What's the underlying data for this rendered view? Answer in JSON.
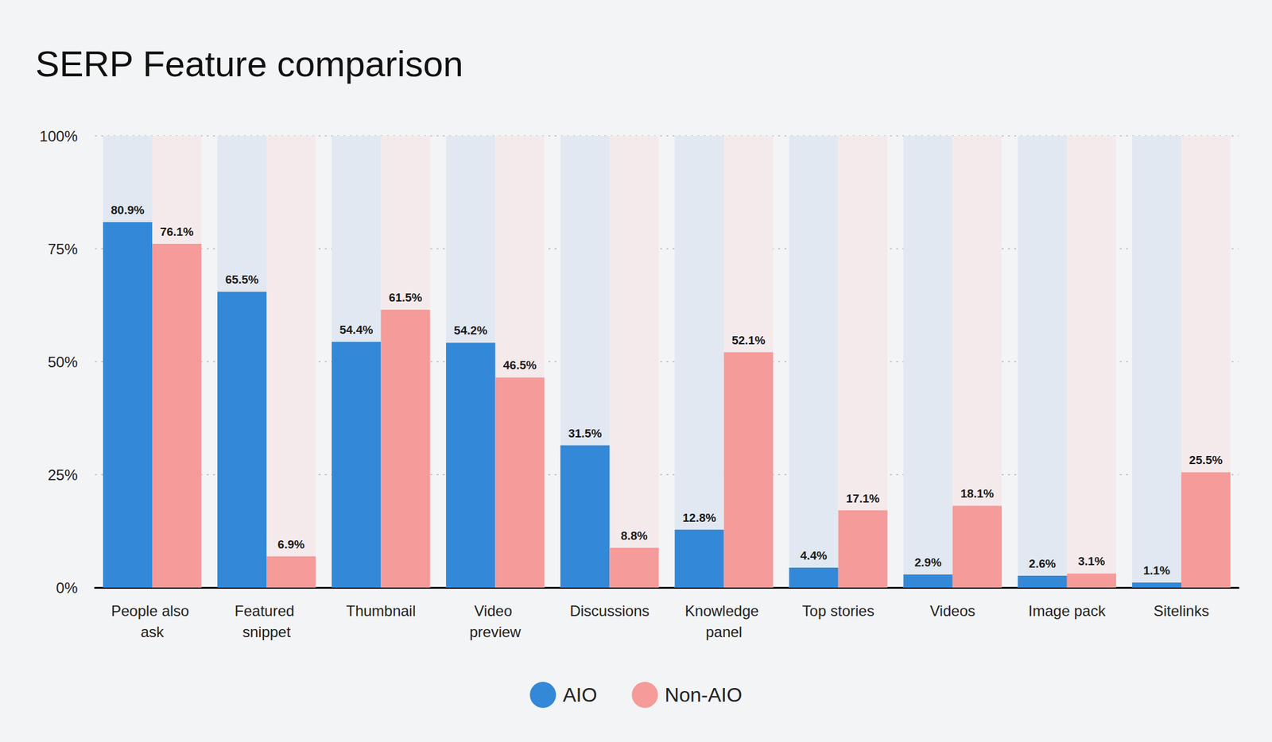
{
  "chart_data": {
    "type": "bar",
    "title": "SERP Feature comparison",
    "categories": [
      "People also ask",
      "Featured snippet",
      "Thumbnail",
      "Video preview",
      "Discussions",
      "Knowledge panel",
      "Top stories",
      "Videos",
      "Image pack",
      "Sitelinks"
    ],
    "series": [
      {
        "name": "AIO",
        "color": "#3388d7",
        "values": [
          80.9,
          65.5,
          54.4,
          54.2,
          31.5,
          12.8,
          4.4,
          2.9,
          2.6,
          1.1
        ],
        "value_labels": [
          "80.9%",
          "65.5%",
          "54.4%",
          "54.2%",
          "31.5%",
          "12.8%",
          "4.4%",
          "2.9%",
          "2.6%",
          "1.1%"
        ]
      },
      {
        "name": "Non-AIO",
        "color": "#f59b99",
        "values": [
          76.1,
          6.9,
          61.5,
          46.5,
          8.8,
          52.1,
          17.1,
          18.1,
          3.1,
          25.5
        ],
        "value_labels": [
          "76.1%",
          "6.9%",
          "61.5%",
          "46.5%",
          "8.8%",
          "52.1%",
          "17.1%",
          "18.1%",
          "3.1%",
          "25.5%"
        ]
      }
    ],
    "ylim": [
      0,
      100
    ],
    "yticks": [
      {
        "value": 0,
        "label": "0%"
      },
      {
        "value": 25,
        "label": "25%"
      },
      {
        "value": 50,
        "label": "50%"
      },
      {
        "value": 75,
        "label": "75%"
      },
      {
        "value": 100,
        "label": "100%"
      }
    ],
    "grid": true,
    "legend": "bottom",
    "data_labels": true
  }
}
